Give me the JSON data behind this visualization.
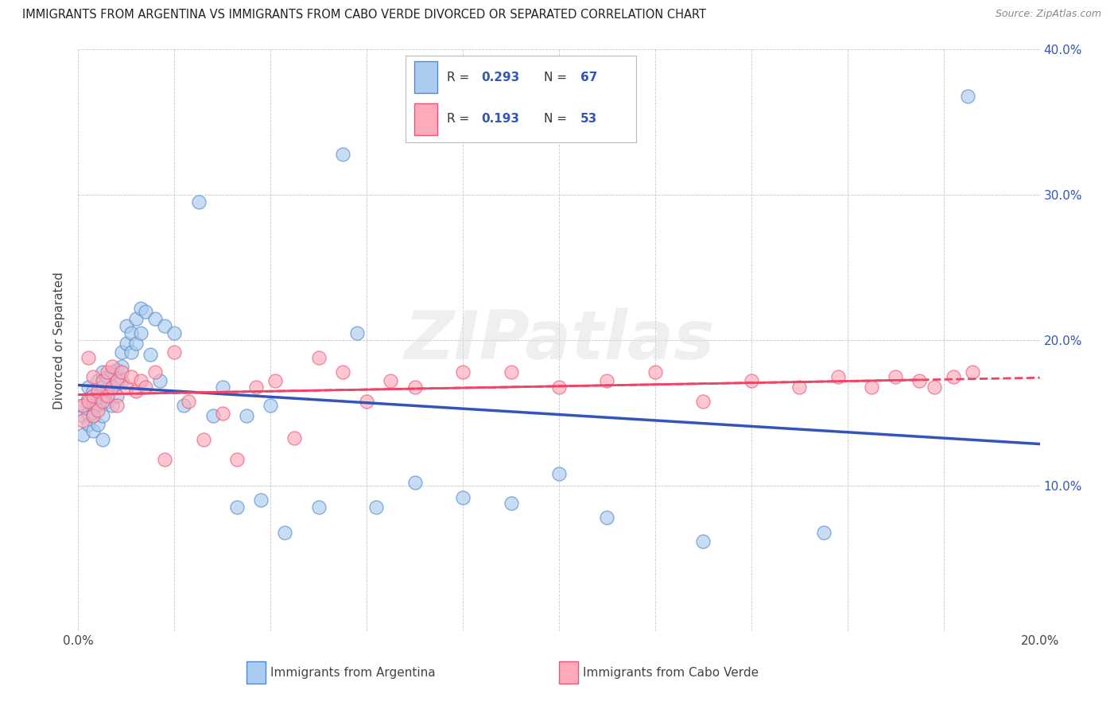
{
  "title": "IMMIGRANTS FROM ARGENTINA VS IMMIGRANTS FROM CABO VERDE DIVORCED OR SEPARATED CORRELATION CHART",
  "source": "Source: ZipAtlas.com",
  "ylabel": "Divorced or Separated",
  "legend_label1": "Immigrants from Argentina",
  "legend_label2": "Immigrants from Cabo Verde",
  "R1": 0.293,
  "N1": 67,
  "R2": 0.193,
  "N2": 53,
  "color_blue": "#AACCEE",
  "color_pink": "#FFAABB",
  "edge_blue": "#5588CC",
  "edge_pink": "#EE5577",
  "line_blue": "#3355BB",
  "line_pink": "#EE4466",
  "xlim": [
    0.0,
    0.2
  ],
  "ylim": [
    0.0,
    0.4
  ],
  "blue_x": [
    0.001,
    0.001,
    0.001,
    0.002,
    0.002,
    0.002,
    0.002,
    0.003,
    0.003,
    0.003,
    0.003,
    0.003,
    0.004,
    0.004,
    0.004,
    0.004,
    0.005,
    0.005,
    0.005,
    0.005,
    0.006,
    0.006,
    0.006,
    0.007,
    0.007,
    0.007,
    0.008,
    0.008,
    0.008,
    0.009,
    0.009,
    0.009,
    0.01,
    0.01,
    0.011,
    0.011,
    0.012,
    0.012,
    0.013,
    0.013,
    0.014,
    0.015,
    0.016,
    0.017,
    0.018,
    0.02,
    0.022,
    0.025,
    0.028,
    0.03,
    0.033,
    0.035,
    0.038,
    0.04,
    0.043,
    0.05,
    0.055,
    0.058,
    0.062,
    0.07,
    0.08,
    0.09,
    0.1,
    0.11,
    0.13,
    0.155,
    0.185
  ],
  "blue_y": [
    0.135,
    0.148,
    0.155,
    0.15,
    0.142,
    0.16,
    0.168,
    0.155,
    0.148,
    0.165,
    0.138,
    0.158,
    0.162,
    0.172,
    0.155,
    0.142,
    0.168,
    0.178,
    0.148,
    0.132,
    0.175,
    0.165,
    0.158,
    0.178,
    0.168,
    0.155,
    0.18,
    0.17,
    0.162,
    0.192,
    0.182,
    0.172,
    0.198,
    0.21,
    0.205,
    0.192,
    0.215,
    0.198,
    0.222,
    0.205,
    0.22,
    0.19,
    0.215,
    0.172,
    0.21,
    0.205,
    0.155,
    0.295,
    0.148,
    0.168,
    0.085,
    0.148,
    0.09,
    0.155,
    0.068,
    0.085,
    0.328,
    0.205,
    0.085,
    0.102,
    0.092,
    0.088,
    0.108,
    0.078,
    0.062,
    0.068,
    0.368
  ],
  "pink_x": [
    0.001,
    0.001,
    0.002,
    0.002,
    0.003,
    0.003,
    0.003,
    0.004,
    0.004,
    0.005,
    0.005,
    0.006,
    0.006,
    0.007,
    0.007,
    0.008,
    0.008,
    0.009,
    0.01,
    0.011,
    0.012,
    0.013,
    0.014,
    0.016,
    0.018,
    0.02,
    0.023,
    0.026,
    0.03,
    0.033,
    0.037,
    0.041,
    0.045,
    0.05,
    0.055,
    0.06,
    0.065,
    0.07,
    0.08,
    0.09,
    0.1,
    0.11,
    0.12,
    0.13,
    0.14,
    0.15,
    0.158,
    0.165,
    0.17,
    0.175,
    0.178,
    0.182,
    0.186
  ],
  "pink_y": [
    0.145,
    0.155,
    0.188,
    0.158,
    0.148,
    0.162,
    0.175,
    0.165,
    0.152,
    0.158,
    0.172,
    0.162,
    0.178,
    0.168,
    0.182,
    0.155,
    0.172,
    0.178,
    0.168,
    0.175,
    0.165,
    0.172,
    0.168,
    0.178,
    0.118,
    0.192,
    0.158,
    0.132,
    0.15,
    0.118,
    0.168,
    0.172,
    0.133,
    0.188,
    0.178,
    0.158,
    0.172,
    0.168,
    0.178,
    0.178,
    0.168,
    0.172,
    0.178,
    0.158,
    0.172,
    0.168,
    0.175,
    0.168,
    0.175,
    0.172,
    0.168,
    0.175,
    0.178
  ],
  "watermark_text": "ZIPatlas",
  "background_color": "#FFFFFF",
  "ytick_vals": [
    0.0,
    0.1,
    0.2,
    0.3,
    0.4
  ],
  "xtick_vals": [
    0.0,
    0.02,
    0.04,
    0.06,
    0.08,
    0.1,
    0.12,
    0.14,
    0.16,
    0.18,
    0.2
  ]
}
